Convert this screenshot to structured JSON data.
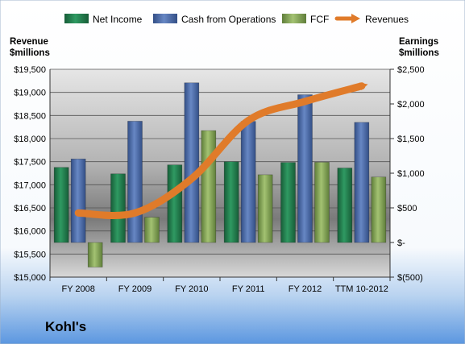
{
  "company": "Kohl's",
  "chart_data": {
    "type": "bar",
    "categories": [
      "FY 2008",
      "FY 2009",
      "FY 2010",
      "FY 2011",
      "FY 2012",
      "TTM 10-2012"
    ],
    "left_axis": {
      "label_line1": "Revenue",
      "label_line2": "$millions",
      "min": 15000,
      "max": 19500,
      "step": 500,
      "tick_labels": [
        "$15,000",
        "$15,500",
        "$16,000",
        "$16,500",
        "$17,000",
        "$17,500",
        "$18,000",
        "$18,500",
        "$19,000",
        "$19,500"
      ]
    },
    "right_axis": {
      "label_line1": "Earnings",
      "label_line2": "$millions",
      "min": -500,
      "max": 2500,
      "step": 500,
      "tick_labels": [
        "$(500)",
        "$-",
        "$500",
        "$1,000",
        "$1,500",
        "$2,000",
        "$2,500"
      ]
    },
    "series": [
      {
        "name": "Net Income",
        "axis": "right",
        "color": "#1e7a4a",
        "values": [
          1084,
          991,
          1120,
          1167,
          1155,
          1075
        ]
      },
      {
        "name": "Cash from Operations",
        "axis": "right",
        "color": "#4a6aa8",
        "values": [
          1206,
          1751,
          2305,
          1748,
          2133,
          1734
        ]
      },
      {
        "name": "FCF",
        "axis": "right",
        "color": "#7fa052",
        "values": [
          -355,
          364,
          1615,
          978,
          1158,
          945
        ]
      },
      {
        "name": "Revenues",
        "axis": "left",
        "type": "line",
        "color": "#e07b2a",
        "values": [
          16389,
          16389,
          17132,
          18391,
          18804,
          19138
        ]
      }
    ],
    "grid": true,
    "legend_position": "top"
  }
}
